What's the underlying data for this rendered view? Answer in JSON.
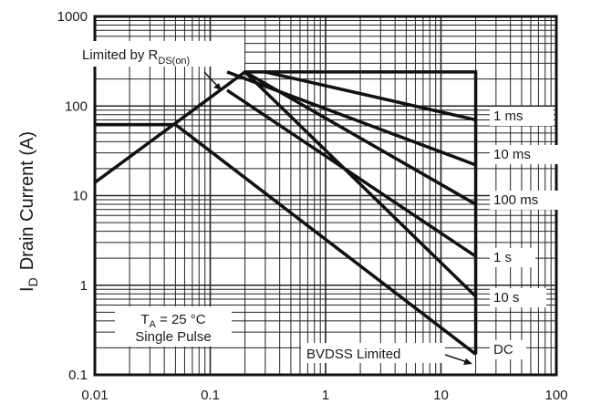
{
  "chart_data": {
    "type": "line",
    "title": "",
    "xlabel": "",
    "ylabel_main": "Drain Current (A)",
    "ylabel_prefix": "I",
    "ylabel_sub": "D",
    "x_scale": "log",
    "y_scale": "log",
    "xlim": [
      0.01,
      100
    ],
    "ylim": [
      0.1,
      1000
    ],
    "grid": true,
    "x_ticks": [
      {
        "value": 0.01,
        "label": "0.01"
      },
      {
        "value": 0.1,
        "label": "0.1"
      },
      {
        "value": 1,
        "label": "1"
      },
      {
        "value": 10,
        "label": "10"
      },
      {
        "value": 100,
        "label": "100"
      }
    ],
    "y_ticks": [
      {
        "value": 0.1,
        "label": "0.1"
      },
      {
        "value": 1,
        "label": "1"
      },
      {
        "value": 10,
        "label": "10"
      },
      {
        "value": 100,
        "label": "100"
      },
      {
        "value": 1000,
        "label": "1000"
      }
    ],
    "envelope": [
      {
        "x": 0.01,
        "y": 14
      },
      {
        "x": 0.2,
        "y": 240
      },
      {
        "x": 20,
        "y": 240
      },
      {
        "x": 20,
        "y": 0.17
      }
    ],
    "series": [
      {
        "name": "1 ms",
        "points": [
          {
            "x": 0.3,
            "y": 240
          },
          {
            "x": 20,
            "y": 70
          }
        ]
      },
      {
        "name": "10 ms",
        "points": [
          {
            "x": 0.14,
            "y": 240
          },
          {
            "x": 20,
            "y": 22
          }
        ]
      },
      {
        "name": "100 ms",
        "points": [
          {
            "x": 0.2,
            "y": 240
          },
          {
            "x": 20,
            "y": 8
          }
        ]
      },
      {
        "name": "1 s",
        "points": [
          {
            "x": 0.14,
            "y": 150
          },
          {
            "x": 20,
            "y": 2.1
          }
        ]
      },
      {
        "name": "10 s",
        "points": [
          {
            "x": 0.2,
            "y": 240
          },
          {
            "x": 20,
            "y": 0.75
          }
        ]
      },
      {
        "name": "DC",
        "points": [
          {
            "x": 0.01,
            "y": 62
          },
          {
            "x": 0.05,
            "y": 62
          },
          {
            "x": 20,
            "y": 0.17
          }
        ]
      }
    ],
    "annotations": {
      "rds_prefix": "Limited by R",
      "rds_sub": "DS(on)",
      "ta_prefix": "T",
      "ta_sub": "A",
      "ta_suffix": " = 25 °C",
      "single_pulse": "Single Pulse",
      "bvdss": "BVDSS Limited"
    }
  }
}
